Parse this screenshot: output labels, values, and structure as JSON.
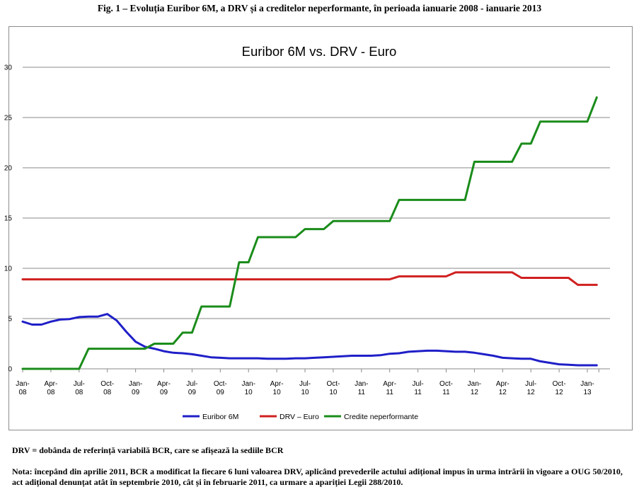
{
  "figure_caption": "Fig. 1 – Evoluția Euribor 6M, a DRV și a creditelor neperformante, în perioada ianuarie 2008 - ianuarie 2013",
  "footnotes": [
    "DRV = dobânda de referință variabilă BCR, care se afișează la sediile BCR",
    "Nota: începând din aprilie 2011, BCR a modificat la fiecare 6 luni valoarea DRV, aplicând prevederile actului adițional impus în urma intrării în vigoare a OUG 50/2010, act adițional denunțat atât în septembrie 2010, cât și în februarie 2011, ca urmare a apariției Legii 288/2010."
  ],
  "chart_data": {
    "type": "line",
    "title": "Euribor 6M vs. DRV - Euro",
    "xlabel": "",
    "ylabel": "",
    "ylim": [
      0,
      30
    ],
    "yticks": [
      0,
      5,
      10,
      15,
      20,
      25,
      30
    ],
    "grid": true,
    "legend_position": "bottom",
    "x": [
      "2008-01",
      "2008-02",
      "2008-03",
      "2008-04",
      "2008-05",
      "2008-06",
      "2008-07",
      "2008-08",
      "2008-09",
      "2008-10",
      "2008-11",
      "2008-12",
      "2009-01",
      "2009-02",
      "2009-03",
      "2009-04",
      "2009-05",
      "2009-06",
      "2009-07",
      "2009-08",
      "2009-09",
      "2009-10",
      "2009-11",
      "2009-12",
      "2010-01",
      "2010-02",
      "2010-03",
      "2010-04",
      "2010-05",
      "2010-06",
      "2010-07",
      "2010-08",
      "2010-09",
      "2010-10",
      "2010-11",
      "2010-12",
      "2011-01",
      "2011-02",
      "2011-03",
      "2011-04",
      "2011-05",
      "2011-06",
      "2011-07",
      "2011-08",
      "2011-09",
      "2011-10",
      "2011-11",
      "2011-12",
      "2012-01",
      "2012-02",
      "2012-03",
      "2012-04",
      "2012-05",
      "2012-06",
      "2012-07",
      "2012-08",
      "2012-09",
      "2012-10",
      "2012-11",
      "2012-12",
      "2013-01",
      "2013-02"
    ],
    "x_tick_labels": [
      [
        "Jan-",
        "08"
      ],
      [
        "Apr-",
        "08"
      ],
      [
        "Jul-",
        "08"
      ],
      [
        "Oct-",
        "08"
      ],
      [
        "Jan-",
        "09"
      ],
      [
        "Apr-",
        "09"
      ],
      [
        "Jul-",
        "09"
      ],
      [
        "Oct-",
        "09"
      ],
      [
        "Jan-",
        "10"
      ],
      [
        "Apr-",
        "10"
      ],
      [
        "Jul-",
        "10"
      ],
      [
        "Oct-",
        "10"
      ],
      [
        "Jan-",
        "11"
      ],
      [
        "Apr-",
        "11"
      ],
      [
        "Jul-",
        "11"
      ],
      [
        "Oct-",
        "11"
      ],
      [
        "Jan-",
        "12"
      ],
      [
        "Apr-",
        "12"
      ],
      [
        "Jul-",
        "12"
      ],
      [
        "Oct-",
        "12"
      ],
      [
        "Jan-",
        "13"
      ]
    ],
    "series": [
      {
        "name": "Euribor 6M",
        "color": "#1f1fc8",
        "values": [
          4.7,
          4.4,
          4.4,
          4.7,
          4.9,
          4.95,
          5.15,
          5.2,
          5.2,
          5.45,
          4.8,
          3.7,
          2.7,
          2.2,
          2.0,
          1.75,
          1.6,
          1.55,
          1.45,
          1.3,
          1.15,
          1.1,
          1.05,
          1.05,
          1.05,
          1.05,
          1.0,
          1.0,
          1.0,
          1.05,
          1.05,
          1.1,
          1.15,
          1.2,
          1.25,
          1.3,
          1.3,
          1.3,
          1.35,
          1.5,
          1.55,
          1.7,
          1.75,
          1.8,
          1.8,
          1.75,
          1.7,
          1.7,
          1.6,
          1.45,
          1.3,
          1.1,
          1.05,
          1.0,
          1.0,
          0.75,
          0.6,
          0.45,
          0.4,
          0.35,
          0.35,
          0.35
        ]
      },
      {
        "name": "DRV – Euro",
        "color": "#d02020",
        "values": [
          8.9,
          8.9,
          8.9,
          8.9,
          8.9,
          8.9,
          8.9,
          8.9,
          8.9,
          8.9,
          8.9,
          8.9,
          8.9,
          8.9,
          8.9,
          8.9,
          8.9,
          8.9,
          8.9,
          8.9,
          8.9,
          8.9,
          8.9,
          8.9,
          8.9,
          8.9,
          8.9,
          8.9,
          8.9,
          8.9,
          8.9,
          8.9,
          8.9,
          8.9,
          8.9,
          8.9,
          8.9,
          8.9,
          8.9,
          8.9,
          9.2,
          9.2,
          9.2,
          9.2,
          9.2,
          9.2,
          9.6,
          9.6,
          9.6,
          9.6,
          9.6,
          9.6,
          9.6,
          9.05,
          9.05,
          9.05,
          9.05,
          9.05,
          9.05,
          8.35,
          8.35,
          8.35
        ]
      },
      {
        "name": "Credite neperformante",
        "color": "#1a8c1a",
        "values": [
          0,
          0,
          0,
          0,
          0,
          0,
          0,
          2.0,
          2.0,
          2.0,
          2.0,
          2.0,
          2.0,
          2.0,
          2.5,
          2.5,
          2.5,
          3.6,
          3.6,
          6.2,
          6.2,
          6.2,
          6.2,
          10.6,
          10.6,
          13.1,
          13.1,
          13.1,
          13.1,
          13.1,
          13.9,
          13.9,
          13.9,
          14.7,
          14.7,
          14.7,
          14.7,
          14.7,
          14.7,
          14.7,
          16.8,
          16.8,
          16.8,
          16.8,
          16.8,
          16.8,
          16.8,
          16.8,
          20.6,
          20.6,
          20.6,
          20.6,
          20.6,
          22.4,
          22.4,
          24.6,
          24.6,
          24.6,
          24.6,
          24.6,
          24.6,
          27.0
        ]
      }
    ]
  }
}
